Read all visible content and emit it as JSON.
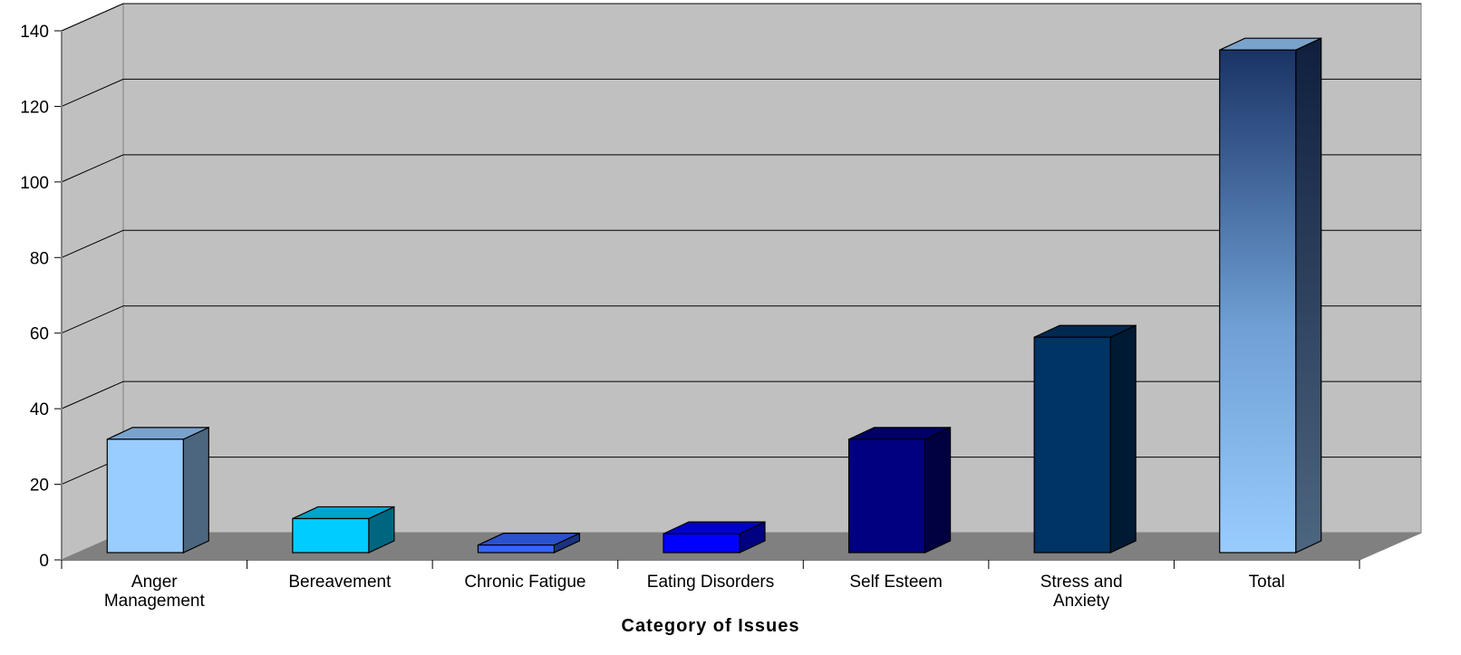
{
  "chart_data": {
    "type": "bar",
    "style": "3d-column",
    "title": "",
    "xlabel": "Category of Issues",
    "ylabel": "",
    "ylim": [
      0,
      140
    ],
    "yticks": [
      0,
      20,
      40,
      60,
      80,
      100,
      120,
      140
    ],
    "grid": true,
    "legend": "none",
    "categories": [
      [
        "Anger",
        "Management"
      ],
      [
        "Bereavement"
      ],
      [
        "Chronic Fatigue"
      ],
      [
        "Eating Disorders"
      ],
      [
        "Self  Esteem"
      ],
      [
        "Stress and",
        "Anxiety"
      ],
      [
        "Total"
      ]
    ],
    "values": [
      30,
      9,
      2,
      5,
      30,
      57,
      133
    ],
    "colors": {
      "wall": "#c0c0c0",
      "floor": "#808080",
      "gridline": "#000000",
      "bars": [
        {
          "front": "#99ccff",
          "side": "#4d6680",
          "top": "#7aa3cc"
        },
        {
          "front": "#00ccff",
          "side": "#006680",
          "top": "#00a3cc"
        },
        {
          "front": "#3366ff",
          "side": "#1a3380",
          "top": "#2952cc"
        },
        {
          "front": "#0000ff",
          "side": "#000080",
          "top": "#0000cc"
        },
        {
          "front": "#000080",
          "side": "#000040",
          "top": "#000066"
        },
        {
          "front": "#003366",
          "side": "#001a33",
          "top": "#002952"
        },
        {
          "front": "gradient:#1a3366-#99ccff",
          "side": "gradient:#0f1f3d-#4d6680",
          "top": "#7aa3cc"
        }
      ]
    }
  }
}
